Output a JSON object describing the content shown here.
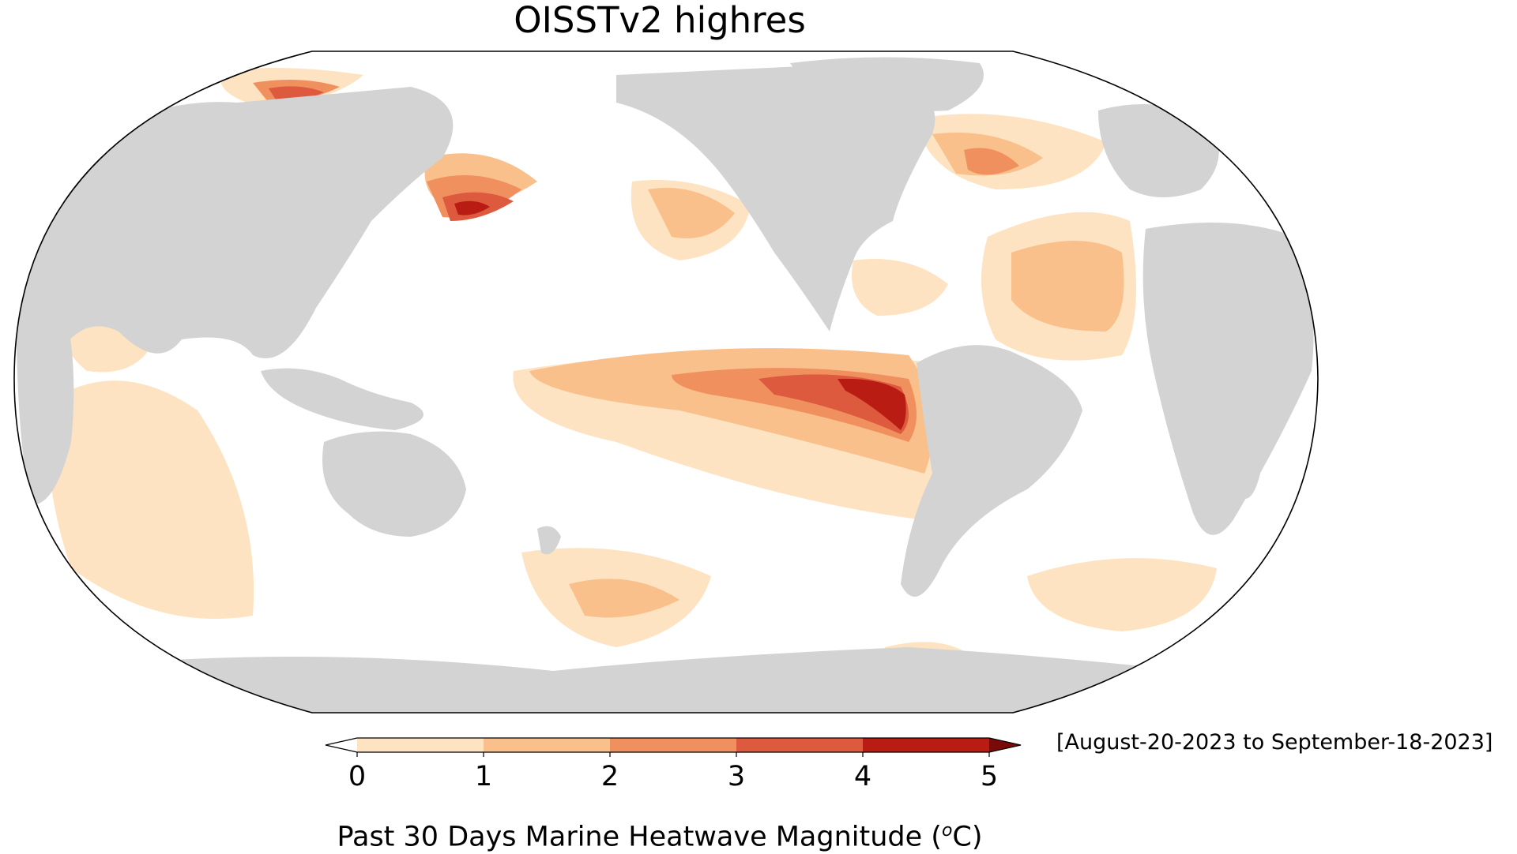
{
  "title": "OISSTv2 highres",
  "date_range": "[August-20-2023 to September-18-2023]",
  "colorbar": {
    "label_prefix": "Past 30 Days Marine Heatwave Magnitude (",
    "unit_sup": "o",
    "unit_letter": "C",
    "label_suffix": ")",
    "ticks": [
      "0",
      "1",
      "2",
      "3",
      "4",
      "5"
    ],
    "bins": [
      {
        "min": 0,
        "max": 1,
        "color": "#fde3c2"
      },
      {
        "min": 1,
        "max": 2,
        "color": "#f9c08b"
      },
      {
        "min": 2,
        "max": 3,
        "color": "#f0905f"
      },
      {
        "min": 3,
        "max": 4,
        "color": "#de5a3f"
      },
      {
        "min": 4,
        "max": 5,
        "color": "#b81c12"
      }
    ],
    "under_color": "#ffffff",
    "over_color": "#7a0a08"
  },
  "colors": {
    "land": "#d3d3d3",
    "ocean": "#ffffff",
    "outline": "#000000"
  }
}
